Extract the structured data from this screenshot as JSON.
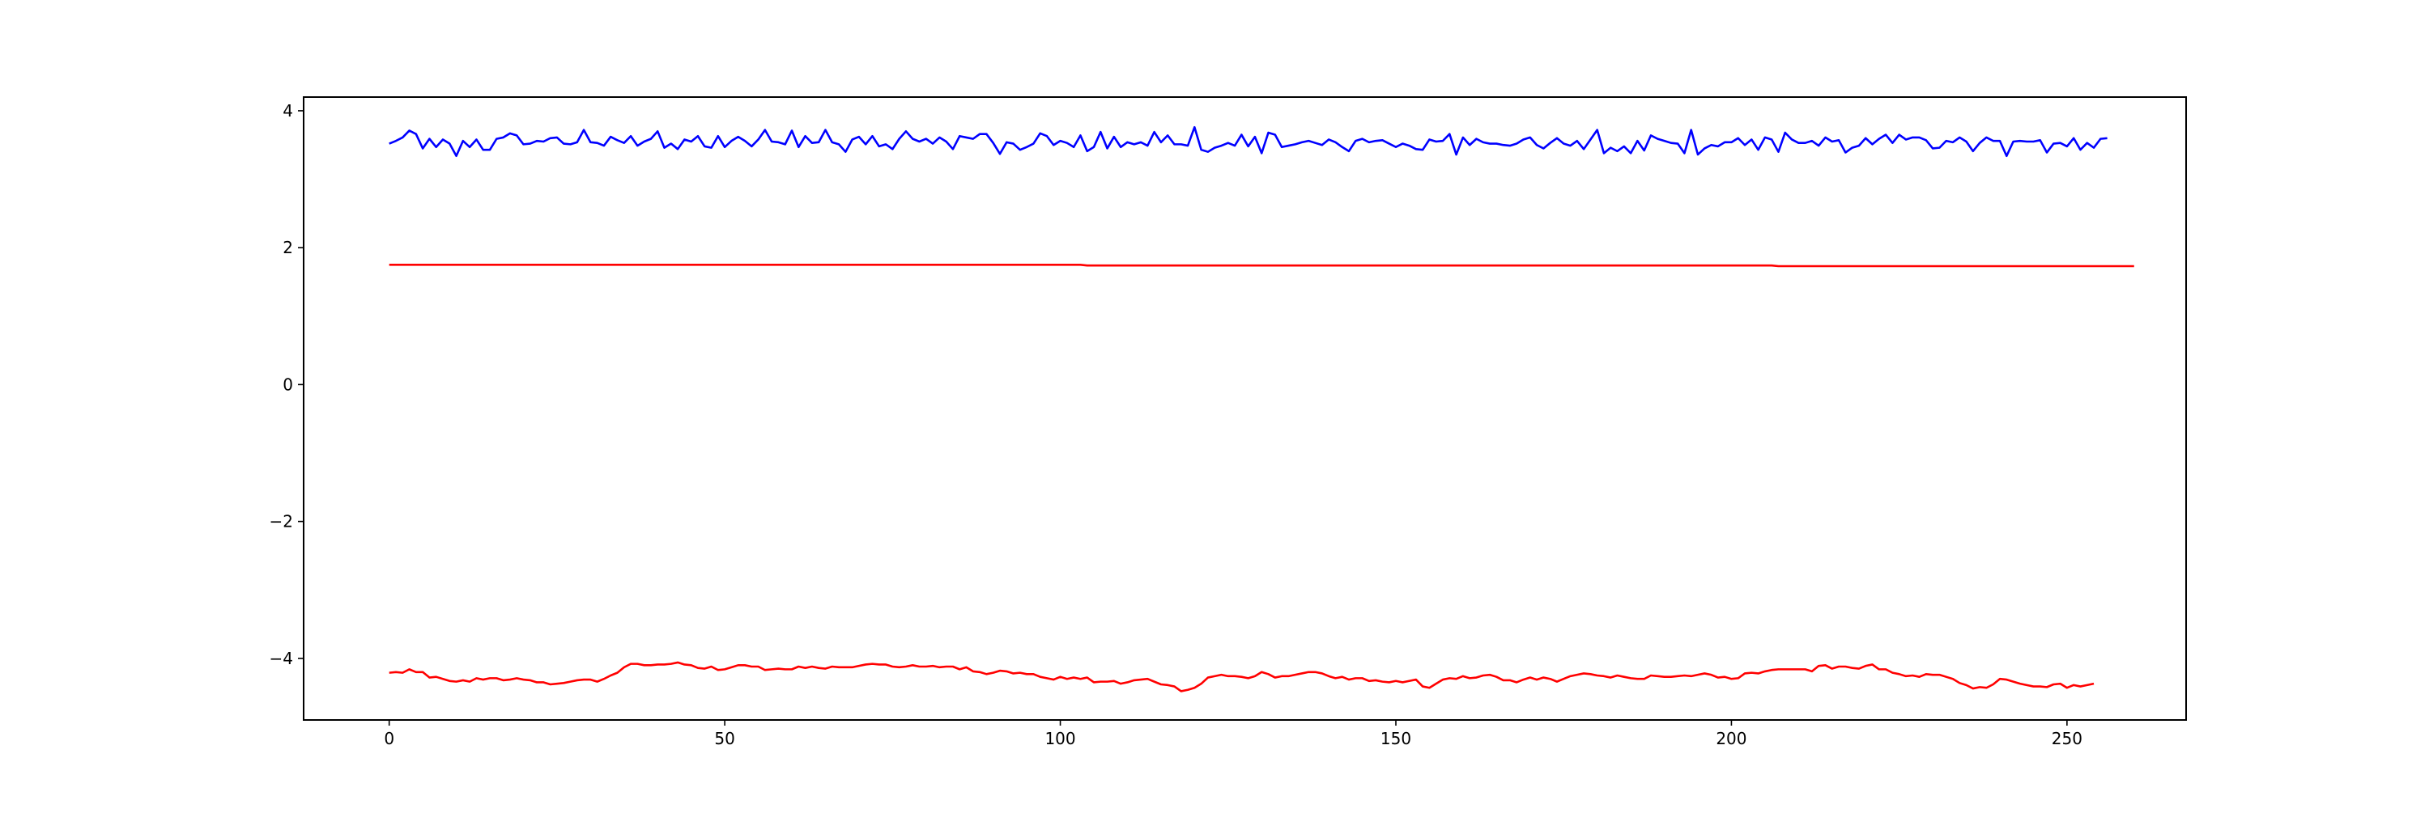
{
  "chart_data": {
    "type": "line",
    "title": "",
    "xlabel": "",
    "ylabel": "",
    "xlim": [
      -12.75,
      267.75
    ],
    "ylim": [
      -4.9,
      4.2
    ],
    "grid": false,
    "legend": "none",
    "x_ticks": [
      0,
      50,
      100,
      150,
      200,
      250
    ],
    "x_tick_labels": [
      "0",
      "50",
      "100",
      "150",
      "200",
      "250"
    ],
    "y_ticks": [
      4,
      2,
      0,
      -2,
      -4
    ],
    "y_tick_labels": [
      "4",
      "2",
      "0",
      "−2",
      "−4"
    ],
    "x": {
      "start": 0,
      "end": 255,
      "step": 1
    },
    "series": [
      {
        "color": "#0000ff",
        "kind": "noisy",
        "values": [
          3.52,
          3.56,
          3.61,
          3.71,
          3.66,
          3.45,
          3.59,
          3.47,
          3.58,
          3.52,
          3.34,
          3.56,
          3.47,
          3.58,
          3.43,
          3.43,
          3.59,
          3.61,
          3.67,
          3.64,
          3.51,
          3.52,
          3.56,
          3.55,
          3.6,
          3.61,
          3.52,
          3.51,
          3.54,
          3.72,
          3.54,
          3.53,
          3.49,
          3.62,
          3.57,
          3.53,
          3.63,
          3.49,
          3.55,
          3.59,
          3.7,
          3.46,
          3.52,
          3.44,
          3.58,
          3.55,
          3.63,
          3.48,
          3.46,
          3.63,
          3.47,
          3.56,
          3.62,
          3.56,
          3.48,
          3.58,
          3.72,
          3.55,
          3.54,
          3.51,
          3.71,
          3.47,
          3.63,
          3.53,
          3.54,
          3.72,
          3.54,
          3.51,
          3.4,
          3.58,
          3.62,
          3.51,
          3.63,
          3.48,
          3.51,
          3.44,
          3.59,
          3.7,
          3.59,
          3.55,
          3.59,
          3.52,
          3.61,
          3.55,
          3.44,
          3.63,
          3.61,
          3.59,
          3.66,
          3.66,
          3.53,
          3.37,
          3.54,
          3.52,
          3.43,
          3.47,
          3.52,
          3.67,
          3.63,
          3.5,
          3.56,
          3.53,
          3.47,
          3.64,
          3.41,
          3.47,
          3.69,
          3.45,
          3.62,
          3.47,
          3.54,
          3.51,
          3.54,
          3.49,
          3.69,
          3.54,
          3.64,
          3.51,
          3.51,
          3.49,
          3.76,
          3.43,
          3.4,
          3.46,
          3.49,
          3.53,
          3.49,
          3.65,
          3.48,
          3.62,
          3.38,
          3.68,
          3.65,
          3.47,
          3.49,
          3.51,
          3.54,
          3.56,
          3.53,
          3.5,
          3.58,
          3.54,
          3.47,
          3.41,
          3.56,
          3.59,
          3.54,
          3.56,
          3.57,
          3.52,
          3.47,
          3.52,
          3.49,
          3.44,
          3.43,
          3.58,
          3.55,
          3.56,
          3.66,
          3.36,
          3.61,
          3.5,
          3.59,
          3.54,
          3.52,
          3.52,
          3.5,
          3.49,
          3.52,
          3.58,
          3.61,
          3.5,
          3.45,
          3.53,
          3.6,
          3.52,
          3.49,
          3.56,
          3.44,
          3.58,
          3.72,
          3.38,
          3.46,
          3.41,
          3.48,
          3.38,
          3.56,
          3.42,
          3.64,
          3.59,
          3.56,
          3.53,
          3.52,
          3.38,
          3.72,
          3.36,
          3.45,
          3.5,
          3.48,
          3.54,
          3.54,
          3.6,
          3.5,
          3.58,
          3.43,
          3.61,
          3.58,
          3.4,
          3.68,
          3.58,
          3.53,
          3.53,
          3.56,
          3.49,
          3.61,
          3.55,
          3.57,
          3.39,
          3.46,
          3.49,
          3.6,
          3.51,
          3.59,
          3.65,
          3.53,
          3.65,
          3.58,
          3.61,
          3.61,
          3.57,
          3.45,
          3.46,
          3.56,
          3.54,
          3.61,
          3.55,
          3.41,
          3.53,
          3.61,
          3.56,
          3.56,
          3.34,
          3.55,
          3.56,
          3.55,
          3.55,
          3.57,
          3.39,
          3.52,
          3.53,
          3.48,
          3.6,
          3.43,
          3.53,
          3.46,
          3.59,
          3.6
        ]
      },
      {
        "color": "#ff0000",
        "kind": "flat",
        "values": [
          1.75,
          1.75,
          1.75,
          1.75,
          1.75,
          1.75,
          1.75,
          1.75,
          1.75,
          1.75,
          1.75,
          1.75,
          1.75,
          1.75,
          1.75,
          1.75,
          1.75,
          1.75,
          1.75,
          1.75,
          1.75,
          1.75,
          1.75,
          1.75,
          1.75,
          1.75,
          1.75,
          1.75,
          1.75,
          1.75,
          1.75,
          1.75,
          1.75,
          1.75,
          1.75,
          1.75,
          1.75,
          1.75,
          1.75,
          1.75,
          1.75,
          1.75,
          1.75,
          1.75,
          1.75,
          1.75,
          1.75,
          1.75,
          1.75,
          1.75,
          1.75,
          1.75,
          1.75,
          1.75,
          1.75,
          1.75,
          1.75,
          1.75,
          1.75,
          1.75,
          1.75,
          1.75,
          1.75,
          1.75,
          1.75,
          1.75,
          1.75,
          1.75,
          1.75,
          1.75,
          1.75,
          1.75,
          1.75,
          1.75,
          1.75,
          1.75,
          1.75,
          1.75,
          1.75,
          1.75,
          1.75,
          1.75,
          1.75,
          1.75,
          1.75,
          1.75,
          1.75,
          1.75,
          1.75,
          1.75,
          1.75,
          1.75,
          1.75,
          1.75,
          1.75,
          1.75,
          1.75,
          1.75,
          1.75,
          1.75,
          1.75,
          1.75,
          1.75,
          1.75,
          1.74,
          1.74,
          1.74,
          1.74,
          1.74,
          1.74,
          1.74,
          1.74,
          1.74,
          1.74,
          1.74,
          1.74,
          1.74,
          1.74,
          1.74,
          1.74,
          1.74,
          1.74,
          1.74,
          1.74,
          1.74,
          1.74,
          1.74,
          1.74,
          1.74,
          1.74,
          1.74,
          1.74,
          1.74,
          1.74,
          1.74,
          1.74,
          1.74,
          1.74,
          1.74,
          1.74,
          1.74,
          1.74,
          1.74,
          1.74,
          1.74,
          1.74,
          1.74,
          1.74,
          1.74,
          1.74,
          1.74,
          1.74,
          1.74,
          1.74,
          1.74,
          1.74,
          1.74,
          1.74,
          1.74,
          1.74,
          1.74,
          1.74,
          1.74,
          1.74,
          1.74,
          1.74,
          1.74,
          1.74,
          1.74,
          1.74,
          1.74,
          1.74,
          1.74,
          1.74,
          1.74,
          1.74,
          1.74,
          1.74,
          1.74,
          1.74,
          1.74,
          1.74,
          1.74,
          1.74,
          1.74,
          1.74,
          1.74,
          1.74,
          1.74,
          1.74,
          1.74,
          1.74,
          1.74,
          1.74,
          1.74,
          1.74,
          1.74,
          1.74,
          1.74,
          1.74,
          1.74,
          1.74,
          1.74,
          1.74,
          1.74,
          1.74,
          1.74,
          1.73,
          1.73,
          1.73,
          1.73,
          1.73,
          1.73,
          1.73,
          1.73,
          1.73,
          1.73,
          1.73,
          1.73,
          1.73,
          1.73,
          1.73,
          1.73,
          1.73,
          1.73,
          1.73,
          1.73,
          1.73,
          1.73,
          1.73,
          1.73,
          1.73,
          1.73,
          1.73,
          1.73,
          1.73,
          1.73,
          1.73,
          1.73,
          1.73,
          1.73,
          1.73,
          1.73,
          1.73,
          1.73,
          1.73,
          1.73,
          1.73,
          1.73,
          1.73,
          1.73,
          1.73,
          1.73,
          1.73,
          1.73,
          1.73,
          1.73,
          1.73,
          1.73,
          1.73,
          1.73
        ]
      },
      {
        "color": "#ff0000",
        "kind": "smooth",
        "values": [
          -4.21,
          -4.2,
          -4.21,
          -4.16,
          -4.2,
          -4.2,
          -4.28,
          -4.27,
          -4.3,
          -4.33,
          -4.34,
          -4.32,
          -4.34,
          -4.29,
          -4.31,
          -4.29,
          -4.29,
          -4.32,
          -4.31,
          -4.29,
          -4.31,
          -4.32,
          -4.35,
          -4.35,
          -4.38,
          -4.37,
          -4.36,
          -4.34,
          -4.32,
          -4.31,
          -4.31,
          -4.34,
          -4.3,
          -4.25,
          -4.21,
          -4.13,
          -4.08,
          -4.08,
          -4.1,
          -4.1,
          -4.09,
          -4.09,
          -4.08,
          -4.06,
          -4.09,
          -4.1,
          -4.14,
          -4.15,
          -4.12,
          -4.17,
          -4.16,
          -4.13,
          -4.1,
          -4.1,
          -4.12,
          -4.12,
          -4.17,
          -4.16,
          -4.15,
          -4.16,
          -4.16,
          -4.12,
          -4.14,
          -4.12,
          -4.14,
          -4.15,
          -4.12,
          -4.13,
          -4.13,
          -4.13,
          -4.11,
          -4.09,
          -4.08,
          -4.09,
          -4.09,
          -4.12,
          -4.13,
          -4.12,
          -4.1,
          -4.12,
          -4.12,
          -4.11,
          -4.13,
          -4.12,
          -4.12,
          -4.16,
          -4.13,
          -4.19,
          -4.2,
          -4.23,
          -4.21,
          -4.18,
          -4.19,
          -4.22,
          -4.21,
          -4.23,
          -4.23,
          -4.27,
          -4.29,
          -4.31,
          -4.27,
          -4.3,
          -4.28,
          -4.3,
          -4.28,
          -4.35,
          -4.34,
          -4.34,
          -4.33,
          -4.37,
          -4.35,
          -4.32,
          -4.31,
          -4.3,
          -4.34,
          -4.38,
          -4.39,
          -4.41,
          -4.48,
          -4.46,
          -4.43,
          -4.37,
          -4.28,
          -4.26,
          -4.24,
          -4.26,
          -4.26,
          -4.27,
          -4.29,
          -4.26,
          -4.2,
          -4.23,
          -4.28,
          -4.26,
          -4.26,
          -4.24,
          -4.22,
          -4.2,
          -4.2,
          -4.22,
          -4.26,
          -4.29,
          -4.27,
          -4.31,
          -4.29,
          -4.29,
          -4.33,
          -4.32,
          -4.34,
          -4.35,
          -4.33,
          -4.35,
          -4.33,
          -4.31,
          -4.41,
          -4.43,
          -4.37,
          -4.31,
          -4.29,
          -4.3,
          -4.26,
          -4.29,
          -4.28,
          -4.25,
          -4.24,
          -4.27,
          -4.32,
          -4.32,
          -4.35,
          -4.31,
          -4.28,
          -4.31,
          -4.28,
          -4.3,
          -4.34,
          -4.3,
          -4.26,
          -4.24,
          -4.22,
          -4.23,
          -4.25,
          -4.26,
          -4.28,
          -4.25,
          -4.27,
          -4.29,
          -4.3,
          -4.3,
          -4.25,
          -4.26,
          -4.27,
          -4.27,
          -4.26,
          -4.25,
          -4.26,
          -4.24,
          -4.22,
          -4.24,
          -4.28,
          -4.27,
          -4.3,
          -4.29,
          -4.22,
          -4.21,
          -4.22,
          -4.19,
          -4.17,
          -4.16,
          -4.16,
          -4.16,
          -4.16,
          -4.16,
          -4.19,
          -4.11,
          -4.1,
          -4.15,
          -4.12,
          -4.12,
          -4.14,
          -4.15,
          -4.11,
          -4.09,
          -4.16,
          -4.16,
          -4.21,
          -4.23,
          -4.26,
          -4.25,
          -4.27,
          -4.23,
          -4.24,
          -4.24,
          -4.27,
          -4.3,
          -4.36,
          -4.39,
          -4.44,
          -4.42,
          -4.43,
          -4.38,
          -4.3,
          -4.31,
          -4.34,
          -4.37,
          -4.39,
          -4.41,
          -4.41,
          -4.42,
          -4.38,
          -4.37,
          -4.43,
          -4.39,
          -4.41,
          -4.39,
          -4.37
        ]
      }
    ]
  }
}
